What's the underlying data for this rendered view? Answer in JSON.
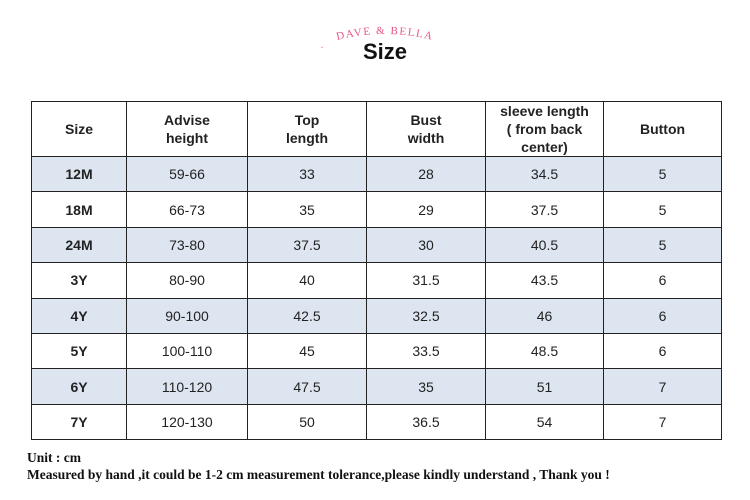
{
  "header": {
    "brand": "DAVE & BELLA",
    "title": "Size"
  },
  "table": {
    "columns": [
      "Size",
      "Advise\nheight",
      "Top\nlength",
      "Bust\nwidth",
      "sleeve length\n( from back\ncenter)",
      "Button"
    ],
    "rows": [
      [
        "12M",
        "59-66",
        "33",
        "28",
        "34.5",
        "5"
      ],
      [
        "18M",
        "66-73",
        "35",
        "29",
        "37.5",
        "5"
      ],
      [
        "24M",
        "73-80",
        "37.5",
        "30",
        "40.5",
        "5"
      ],
      [
        "3Y",
        "80-90",
        "40",
        "31.5",
        "43.5",
        "6"
      ],
      [
        "4Y",
        "90-100",
        "42.5",
        "32.5",
        "46",
        "6"
      ],
      [
        "5Y",
        "100-110",
        "45",
        "33.5",
        "48.5",
        "6"
      ],
      [
        "6Y",
        "110-120",
        "47.5",
        "35",
        "51",
        "7"
      ],
      [
        "7Y",
        "120-130",
        "50",
        "36.5",
        "54",
        "7"
      ]
    ]
  },
  "footer": {
    "unit": "Unit : cm",
    "note": "Measured by hand ,it could be 1-2 cm measurement tolerance,please kindly understand , Thank you !"
  }
}
